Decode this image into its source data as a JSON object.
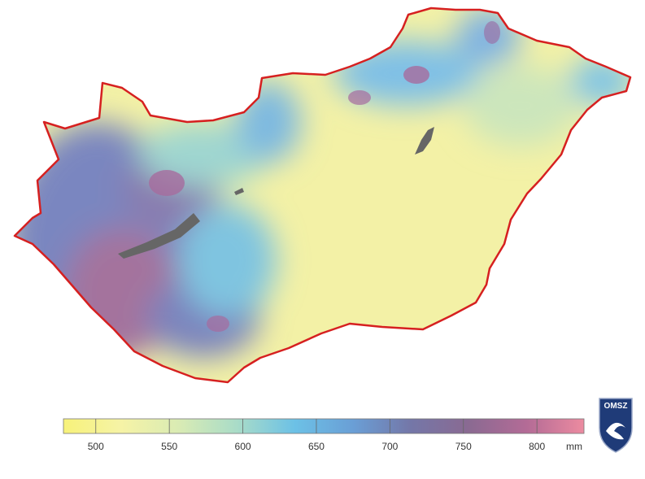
{
  "colorbar": {
    "range": [
      478,
      832
    ],
    "ticks": [
      500,
      550,
      600,
      650,
      700,
      750,
      800
    ],
    "unit": "mm",
    "colors": [
      "#f7f27a",
      "#f6f3a6",
      "#d9ebb4",
      "#a9dcc8",
      "#6cc1e6",
      "#6a9fd6",
      "#7477a8",
      "#8a6a92",
      "#b36b96",
      "#ec8ba0"
    ]
  },
  "logo": {
    "text": "OMSZ"
  }
}
